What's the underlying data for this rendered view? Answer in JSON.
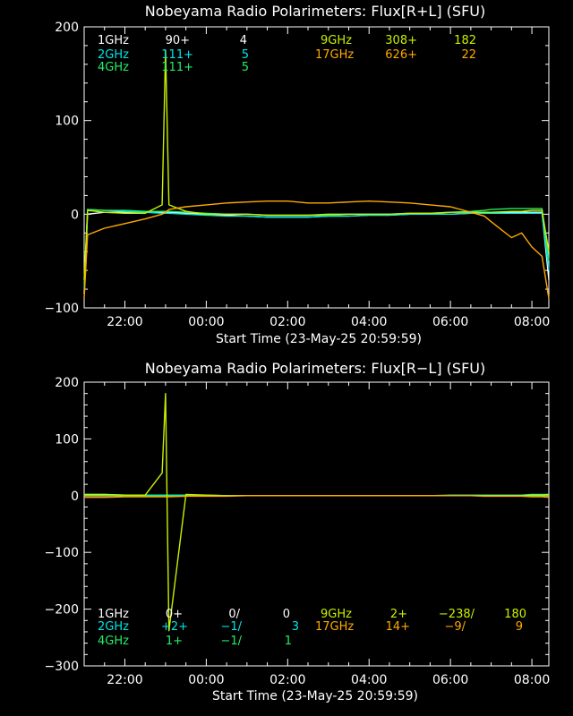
{
  "panels": [
    {
      "title": "Nobeyama Radio Polarimeters: Flux[R+L] (SFU)",
      "xlabel": "Start Time (23-May-25 20:59:59)",
      "legend": [
        {
          "label": "1GHz",
          "v1": "90+",
          "v2": "",
          "v3": "4",
          "color": "#ffffff"
        },
        {
          "label": "2GHz",
          "v1": "111+",
          "v2": "",
          "v3": "5",
          "color": "#00e5e5"
        },
        {
          "label": "4GHz",
          "v1": "111+",
          "v2": "",
          "v3": "5",
          "color": "#22ee66"
        },
        {
          "label": "9GHz",
          "v1": "308+",
          "v2": "",
          "v3": "182",
          "color": "#c8f000"
        },
        {
          "label": "17GHz",
          "v1": "626+",
          "v2": "",
          "v3": "22",
          "color": "#ffaa00"
        }
      ]
    },
    {
      "title": "Nobeyama Radio Polarimeters: Flux[R−L] (SFU)",
      "xlabel": "Start Time (23-May-25 20:59:59)",
      "legend": [
        {
          "label": "1GHz",
          "v1": "0+",
          "v2": "0/",
          "v3": "0",
          "color": "#ffffff"
        },
        {
          "label": "2GHz",
          "v1": "+2+",
          "v2": "−1/",
          "v3": "3",
          "color": "#00e5e5"
        },
        {
          "label": "4GHz",
          "v1": "1+",
          "v2": "−1/",
          "v3": "1",
          "color": "#22ee66"
        },
        {
          "label": "9GHz",
          "v1": "2+",
          "v2": "−238/",
          "v3": "180",
          "color": "#c8f000"
        },
        {
          "label": "17GHz",
          "v1": "14+",
          "v2": "−9/",
          "v3": "9",
          "color": "#ffaa00"
        }
      ]
    }
  ],
  "chart_data": [
    {
      "type": "line",
      "title": "Nobeyama Radio Polarimeters: Flux[R+L] (SFU)",
      "xlabel": "Start Time (23-May-25 20:59:59)",
      "x_ticks": [
        "22:00",
        "00:00",
        "02:00",
        "04:00",
        "06:00",
        "08:00"
      ],
      "y_ticks": [
        "200",
        "100",
        "0",
        "−100"
      ],
      "xlim": [
        "20:59:59",
        "08:25"
      ],
      "ylim": [
        -100,
        200
      ],
      "x": [
        "21:00",
        "21:05",
        "21:30",
        "22:00",
        "22:30",
        "22:55",
        "23:00",
        "23:05",
        "23:30",
        "00:00",
        "00:30",
        "01:00",
        "01:30",
        "02:00",
        "02:30",
        "03:00",
        "03:30",
        "04:00",
        "04:30",
        "05:00",
        "05:30",
        "06:00",
        "06:30",
        "06:50",
        "07:00",
        "07:30",
        "07:45",
        "08:00",
        "08:15",
        "08:25"
      ],
      "series": [
        {
          "name": "1GHz",
          "color": "#ffffff",
          "values": [
            -85,
            0,
            2,
            2,
            2,
            2,
            2,
            2,
            1,
            0,
            -1,
            -2,
            -3,
            -3,
            -3,
            -2,
            -2,
            -1,
            -1,
            0,
            0,
            0,
            1,
            1,
            1,
            2,
            2,
            2,
            2,
            -70
          ]
        },
        {
          "name": "2GHz",
          "color": "#00e5e5",
          "values": [
            -80,
            5,
            4,
            3,
            2,
            1,
            1,
            1,
            0,
            -1,
            -2,
            -2,
            -3,
            -3,
            -3,
            -2,
            -2,
            -1,
            -1,
            0,
            0,
            0,
            1,
            1,
            1,
            1,
            1,
            1,
            1,
            -60
          ]
        },
        {
          "name": "4GHz",
          "color": "#22ee66",
          "values": [
            -75,
            5,
            4,
            4,
            3,
            3,
            3,
            3,
            2,
            1,
            0,
            0,
            -1,
            -1,
            -1,
            -1,
            0,
            0,
            0,
            1,
            1,
            2,
            3,
            4,
            5,
            6,
            6,
            6,
            6,
            -50
          ]
        },
        {
          "name": "9GHz",
          "color": "#c8f000",
          "values": [
            -70,
            4,
            2,
            1,
            1,
            10,
            175,
            10,
            3,
            0,
            0,
            0,
            -1,
            -1,
            -1,
            0,
            0,
            0,
            0,
            1,
            1,
            2,
            2,
            2,
            2,
            3,
            3,
            4,
            4,
            -40
          ]
        },
        {
          "name": "17GHz",
          "color": "#ffaa00",
          "values": [
            -90,
            -22,
            -15,
            -10,
            -5,
            0,
            2,
            5,
            8,
            10,
            12,
            13,
            14,
            14,
            12,
            12,
            13,
            14,
            13,
            12,
            10,
            8,
            2,
            -2,
            -8,
            -25,
            -20,
            -35,
            -45,
            -90
          ]
        }
      ]
    },
    {
      "type": "line",
      "title": "Nobeyama Radio Polarimeters: Flux[R−L] (SFU)",
      "xlabel": "Start Time (23-May-25 20:59:59)",
      "x_ticks": [
        "22:00",
        "00:00",
        "02:00",
        "04:00",
        "06:00",
        "08:00"
      ],
      "y_ticks": [
        "200",
        "100",
        "0",
        "−100",
        "−200",
        "−300"
      ],
      "xlim": [
        "20:59:59",
        "08:25"
      ],
      "ylim": [
        -300,
        200
      ],
      "x": [
        "21:00",
        "21:05",
        "21:30",
        "22:00",
        "22:30",
        "22:55",
        "23:00",
        "23:05",
        "23:30",
        "00:00",
        "00:30",
        "01:00",
        "01:30",
        "02:00",
        "02:30",
        "03:00",
        "03:30",
        "04:00",
        "04:30",
        "05:00",
        "05:30",
        "06:00",
        "06:30",
        "06:50",
        "07:00",
        "07:30",
        "07:45",
        "08:00",
        "08:15",
        "08:25"
      ],
      "series": [
        {
          "name": "1GHz",
          "color": "#ffffff",
          "values": [
            0,
            0,
            0,
            0,
            0,
            0,
            0,
            0,
            0,
            0,
            0,
            0,
            0,
            0,
            0,
            0,
            0,
            0,
            0,
            0,
            0,
            0,
            0,
            0,
            0,
            0,
            0,
            0,
            0,
            0
          ]
        },
        {
          "name": "2GHz",
          "color": "#00e5e5",
          "values": [
            2,
            2,
            2,
            1,
            1,
            1,
            1,
            1,
            1,
            1,
            0,
            0,
            0,
            0,
            0,
            0,
            0,
            0,
            0,
            0,
            0,
            1,
            1,
            1,
            1,
            1,
            1,
            2,
            2,
            2
          ]
        },
        {
          "name": "4GHz",
          "color": "#22ee66",
          "values": [
            1,
            1,
            1,
            0,
            0,
            0,
            0,
            0,
            0,
            0,
            0,
            0,
            0,
            0,
            0,
            0,
            0,
            0,
            0,
            0,
            0,
            0,
            0,
            0,
            0,
            0,
            0,
            0,
            0,
            1
          ]
        },
        {
          "name": "9GHz",
          "color": "#c8f000",
          "values": [
            2,
            2,
            2,
            1,
            1,
            40,
            180,
            -238,
            2,
            1,
            0,
            0,
            0,
            0,
            0,
            0,
            0,
            0,
            0,
            0,
            0,
            0,
            0,
            0,
            0,
            0,
            0,
            1,
            1,
            2
          ]
        },
        {
          "name": "17GHz",
          "color": "#ffaa00",
          "values": [
            -3,
            -3,
            -3,
            -2,
            -2,
            -2,
            -2,
            -2,
            -1,
            -1,
            -1,
            0,
            0,
            0,
            0,
            0,
            0,
            0,
            0,
            0,
            0,
            0,
            0,
            -1,
            -1,
            -1,
            -1,
            -2,
            -2,
            -3
          ]
        }
      ]
    }
  ]
}
